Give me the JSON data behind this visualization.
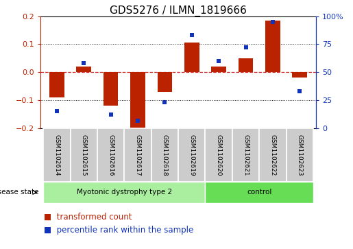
{
  "title": "GDS5276 / ILMN_1819666",
  "samples": [
    "GSM1102614",
    "GSM1102615",
    "GSM1102616",
    "GSM1102617",
    "GSM1102618",
    "GSM1102619",
    "GSM1102620",
    "GSM1102621",
    "GSM1102622",
    "GSM1102623"
  ],
  "red_bars": [
    -0.09,
    0.02,
    -0.12,
    -0.2,
    -0.07,
    0.105,
    0.02,
    0.05,
    0.185,
    -0.02
  ],
  "blue_dots": [
    15,
    58,
    12,
    7,
    23,
    83,
    60,
    72,
    95,
    33
  ],
  "ylim_left": [
    -0.2,
    0.2
  ],
  "ylim_right": [
    0,
    100
  ],
  "yticks_left": [
    -0.2,
    -0.1,
    0.0,
    0.1,
    0.2
  ],
  "yticks_right": [
    0,
    25,
    50,
    75,
    100
  ],
  "ytick_labels_right": [
    "0",
    "25",
    "50",
    "75",
    "100%"
  ],
  "bar_color": "#bb2200",
  "dot_color": "#1133bb",
  "zero_line_color": "#cc2222",
  "grid_color": "#222222",
  "disease_groups": [
    {
      "label": "Myotonic dystrophy type 2",
      "count": 6,
      "color": "#aaeea0"
    },
    {
      "label": "control",
      "count": 4,
      "color": "#66dd55"
    }
  ],
  "disease_state_label": "disease state",
  "legend_items": [
    {
      "label": "transformed count",
      "color": "#bb2200"
    },
    {
      "label": "percentile rank within the sample",
      "color": "#1133bb"
    }
  ],
  "tick_area_bg": "#cccccc",
  "title_fontsize": 11,
  "axis_fontsize": 8,
  "legend_fontsize": 8.5,
  "bar_width": 0.55
}
